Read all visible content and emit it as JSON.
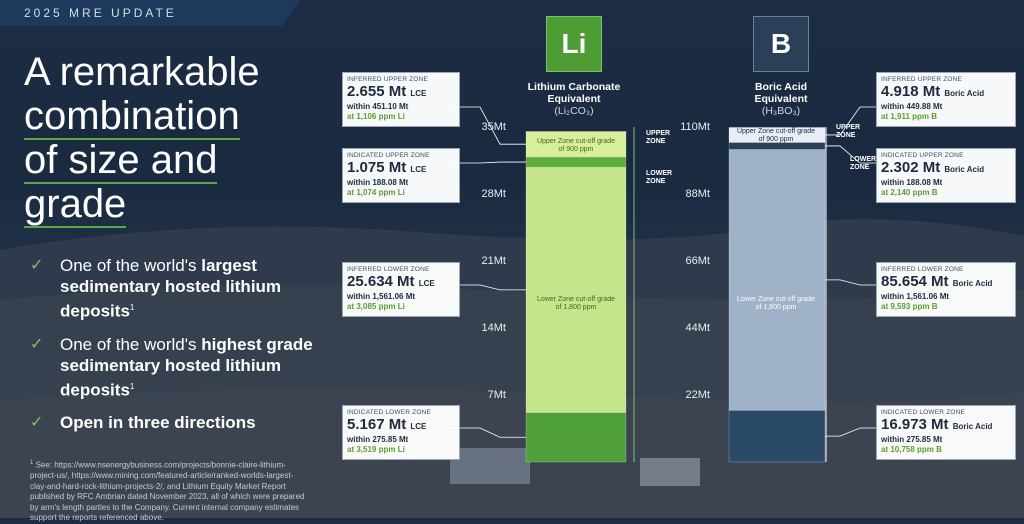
{
  "header": {
    "label": "2025 MRE UPDATE"
  },
  "headline": {
    "line1": "A remarkable",
    "line2": "combination",
    "line3": "of size and",
    "line4": "grade"
  },
  "bullets": [
    {
      "pre": "One of the world's ",
      "bold": "largest",
      "post": " sedimentary hosted lithium deposits",
      "sup": "1"
    },
    {
      "pre": "One of the world's ",
      "bold": "highest",
      "post": " grade sedimentary hosted lithium deposits",
      "sup": "1"
    },
    {
      "pre": "",
      "bold": "Open in three directions",
      "post": "",
      "sup": ""
    }
  ],
  "footnote": {
    "sup": "1",
    "text": "See: https://www.nsenergybusiness.com/projects/bonnie-claire-lithium-project-us/, https://www.mining.com/featured-article/ranked-worlds-largest-clay-and-hard-rock-lithium-projects-2/, and Lithium Equity Market Report published by RFC Ambrian dated November 2023, all of which were prepared by arm's length parties to the Company. Current internal company estimates support the reports referenced above."
  },
  "colors": {
    "accent": "#5aa845",
    "li_box": "#4d9c34",
    "b_box": "#2a3f58",
    "navy": "#1d3a5c"
  },
  "chart_data": [
    {
      "type": "bar",
      "element": "Li",
      "title": "Lithium Carbonate Equivalent",
      "subtitle": "(Li₂CO₃)",
      "yticks": [
        "35Mt",
        "28Mt",
        "21Mt",
        "14Mt",
        "7Mt"
      ],
      "ylim": [
        0,
        35
      ],
      "zone_labels": {
        "upper": "UPPER ZONE",
        "lower": "LOWER ZONE"
      },
      "cutoffs": {
        "upper": "Upper Zone cut-off grade of 900 ppm",
        "lower": "Lower Zone cut-off grade of 1,800 ppm"
      },
      "segments": [
        {
          "zone": "Inferred Upper Zone",
          "label": "INFERRED UPPER ZONE",
          "value": 2.655,
          "value_text": "2.655 Mt",
          "unit": "LCE",
          "within": "within 451.10 Mt",
          "grade": "at 1,106 ppm Li",
          "color": "#d9ee9a"
        },
        {
          "zone": "Indicated Upper Zone",
          "label": "INDICATED UPPER ZONE",
          "value": 1.075,
          "value_text": "1.075 Mt",
          "unit": "LCE",
          "within": "within 188.08 Mt",
          "grade": "at 1,074 ppm Li",
          "color": "#5fae3c"
        },
        {
          "zone": "Inferred Lower Zone",
          "label": "INFERRED LOWER ZONE",
          "value": 25.634,
          "value_text": "25.634 Mt",
          "unit": "LCE",
          "within": "within 1,561.06 Mt",
          "grade": "at 3,085 ppm Li",
          "color": "#c4e58a"
        },
        {
          "zone": "Indicated Lower Zone",
          "label": "INDICATED LOWER ZONE",
          "value": 5.167,
          "value_text": "5.167 Mt",
          "unit": "LCE",
          "within": "within 275.85 Mt",
          "grade": "at 3,519 ppm Li",
          "color": "#4fa03a"
        }
      ]
    },
    {
      "type": "bar",
      "element": "B",
      "title": "Boric Acid Equivalent",
      "subtitle": "(H₃BO₃)",
      "yticks": [
        "110Mt",
        "88Mt",
        "66Mt",
        "44Mt",
        "22Mt"
      ],
      "ylim": [
        0,
        110
      ],
      "zone_labels": {
        "upper": "UPPER ZONE",
        "lower": "LOWER ZONE"
      },
      "cutoffs": {
        "upper": "Upper Zone cut-off grade of 900 ppm",
        "lower": "Lower Zone cut-off grade of 1,800 ppm"
      },
      "segments": [
        {
          "zone": "Inferred Upper Zone",
          "label": "INFERRED UPPER ZONE",
          "value": 4.918,
          "value_text": "4.918 Mt",
          "unit": "Boric Acid",
          "within": "within 449.88 Mt",
          "grade": "at 1,911 ppm B",
          "color": "#e9eef4"
        },
        {
          "zone": "Indicated Upper Zone",
          "label": "INDICATED UPPER ZONE",
          "value": 2.302,
          "value_text": "2.302 Mt",
          "unit": "Boric Acid",
          "within": "within 188.08 Mt",
          "grade": "at 2,140 ppm B",
          "color": "#2a3f58"
        },
        {
          "zone": "Inferred Lower Zone",
          "label": "INFERRED LOWER ZONE",
          "value": 85.654,
          "value_text": "85.654 Mt",
          "unit": "Boric Acid",
          "within": "within 1,561.06 Mt",
          "grade": "at 9,593 ppm B",
          "color": "#9fb2c7"
        },
        {
          "zone": "Indicated Lower Zone",
          "label": "INDICATED LOWER ZONE",
          "value": 16.973,
          "value_text": "16.973 Mt",
          "unit": "Boric Acid",
          "within": "within 275.85 Mt",
          "grade": "at 10,758 ppm B",
          "color": "#2a4a68"
        }
      ]
    }
  ]
}
